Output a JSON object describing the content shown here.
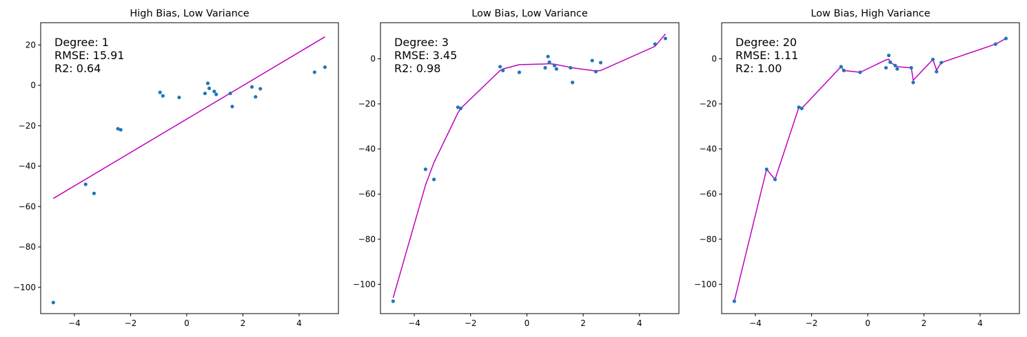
{
  "chart_data": [
    {
      "type": "scatter",
      "title": "High Bias, Low Variance",
      "xlim": [
        -5.2,
        5.4
      ],
      "ylim": [
        -113,
        31
      ],
      "xticks": [
        -4,
        -2,
        0,
        2,
        4
      ],
      "yticks": [
        -100,
        -80,
        -60,
        -40,
        -20,
        0,
        20
      ],
      "annotation": [
        "Degree: 1",
        "RMSE: 15.91",
        "R2: 0.64"
      ],
      "colors": {
        "points": "#1f77b4",
        "fit": "#bf00bf"
      },
      "points": {
        "x": [
          -4.75,
          -3.6,
          -3.3,
          -2.45,
          -2.35,
          -0.95,
          -0.85,
          -0.27,
          0.65,
          0.75,
          0.8,
          0.98,
          1.05,
          1.55,
          1.62,
          2.32,
          2.45,
          2.62,
          4.55,
          4.92
        ],
        "y": [
          -107.5,
          -49,
          -53.5,
          -21.5,
          -22,
          -3.5,
          -5.2,
          -6,
          -4,
          1,
          -1.5,
          -3,
          -4.5,
          -4,
          -10.5,
          -0.8,
          -5.7,
          -1.7,
          6.5,
          9
        ]
      },
      "fit": {
        "x": [
          -4.75,
          4.92
        ],
        "y": [
          -56,
          24
        ]
      }
    },
    {
      "type": "scatter",
      "title": "Low Bias, Low Variance",
      "xlim": [
        -5.2,
        5.4
      ],
      "ylim": [
        -113,
        16
      ],
      "xticks": [
        -4,
        -2,
        0,
        2,
        4
      ],
      "yticks": [
        -100,
        -80,
        -60,
        -40,
        -20,
        0
      ],
      "annotation": [
        "Degree: 3",
        "RMSE: 3.45",
        "R2: 0.98"
      ],
      "colors": {
        "points": "#1f77b4",
        "fit": "#bf00bf"
      },
      "points": {
        "x": [
          -4.75,
          -3.6,
          -3.3,
          -2.45,
          -2.35,
          -0.95,
          -0.85,
          -0.27,
          0.65,
          0.75,
          0.8,
          0.98,
          1.05,
          1.55,
          1.62,
          2.32,
          2.45,
          2.62,
          4.55,
          4.92
        ],
        "y": [
          -107.5,
          -49,
          -53.5,
          -21.5,
          -22,
          -3.5,
          -5.2,
          -6,
          -4,
          1,
          -1.5,
          -3,
          -4.5,
          -4,
          -10.5,
          -0.8,
          -5.7,
          -1.7,
          6.5,
          9
        ]
      },
      "fit": {
        "x": [
          -4.75,
          -3.6,
          -3.3,
          -2.45,
          -2.35,
          -0.95,
          -0.85,
          -0.27,
          0.65,
          0.75,
          0.8,
          0.98,
          1.05,
          1.55,
          1.62,
          2.32,
          2.45,
          2.62,
          4.55,
          4.92
        ],
        "y": [
          -106,
          -56,
          -46,
          -24,
          -22,
          -5.2,
          -4.5,
          -2.6,
          -2.3,
          -2.2,
          -2.2,
          -2.4,
          -2.6,
          -3.8,
          -4,
          -5.2,
          -5.4,
          -5.2,
          5.5,
          11
        ]
      }
    },
    {
      "type": "scatter",
      "title": "Low Bias, High Variance",
      "xlim": [
        -5.2,
        5.4
      ],
      "ylim": [
        -113,
        16
      ],
      "xticks": [
        -4,
        -2,
        0,
        2,
        4
      ],
      "yticks": [
        -100,
        -80,
        -60,
        -40,
        -20,
        0
      ],
      "annotation": [
        "Degree: 20",
        "RMSE: 1.11",
        "R2: 1.00"
      ],
      "colors": {
        "points": "#1f77b4",
        "fit": "#bf00bf"
      },
      "points": {
        "x": [
          -4.75,
          -3.6,
          -3.3,
          -2.45,
          -2.35,
          -0.95,
          -0.85,
          -0.27,
          0.65,
          0.75,
          0.8,
          0.98,
          1.05,
          1.55,
          1.62,
          2.32,
          2.45,
          2.62,
          4.55,
          4.92
        ],
        "y": [
          -107.5,
          -49,
          -53.5,
          -21.5,
          -22,
          -3.5,
          -5.2,
          -6,
          -4,
          1.5,
          -1.5,
          -3,
          -4.5,
          -4,
          -10.5,
          -0.3,
          -5.7,
          -1.7,
          6.5,
          9
        ]
      },
      "fit": {
        "x": [
          -4.75,
          -3.6,
          -3.3,
          -2.45,
          -2.35,
          -0.95,
          -0.85,
          -0.27,
          0.65,
          0.75,
          0.8,
          0.98,
          1.05,
          1.55,
          1.62,
          2.32,
          2.45,
          2.62,
          4.55,
          4.92
        ],
        "y": [
          -107.5,
          -49,
          -53.5,
          -21.5,
          -22,
          -3.5,
          -5.2,
          -6,
          -0.5,
          -0.2,
          -1.5,
          -3,
          -3.5,
          -4,
          -9.5,
          -0.3,
          -5,
          -1.7,
          6.5,
          9
        ]
      }
    }
  ]
}
